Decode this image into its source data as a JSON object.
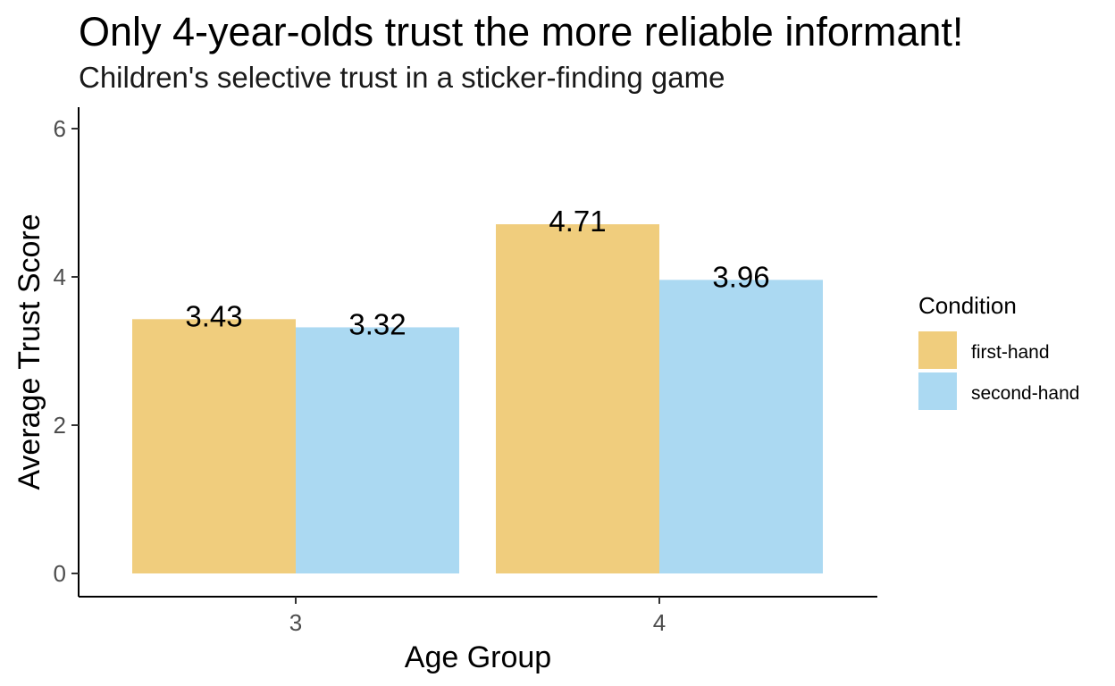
{
  "chart_data": {
    "type": "bar",
    "title": "Only 4-year-olds trust the more reliable informant!",
    "subtitle": "Children's selective trust in a sticker-finding game",
    "xlabel": "Age Group",
    "ylabel": "Average Trust Score",
    "categories": [
      "3",
      "4"
    ],
    "series": [
      {
        "name": "first-hand",
        "values": [
          3.43,
          4.71
        ],
        "labels": [
          "3.43",
          "4.71"
        ],
        "color": "#F0CD7D"
      },
      {
        "name": "second-hand",
        "values": [
          3.32,
          3.96
        ],
        "labels": [
          "3.32",
          "3.96"
        ],
        "color": "#ABD9F2"
      }
    ],
    "ylim": [
      0,
      6.2
    ],
    "yticks": [
      0,
      2,
      4,
      6
    ],
    "ytick_labels": [
      "0",
      "2",
      "4",
      "6"
    ],
    "legend": {
      "title": "Condition",
      "position": "right"
    },
    "grid": false
  }
}
